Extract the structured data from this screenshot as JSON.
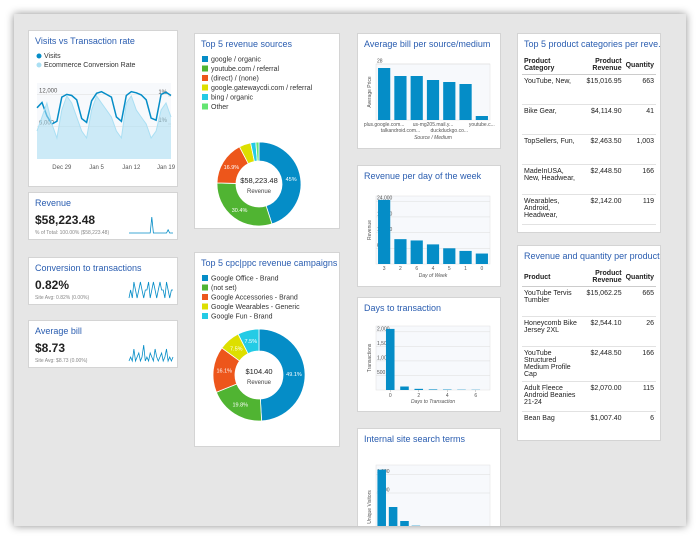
{
  "chart_data": [
    {
      "type": "line",
      "title": "Visits vs Transaction rate",
      "categories": [
        null,
        null,
        null,
        null,
        null,
        "Dec 29",
        null,
        null,
        null,
        null,
        null,
        null,
        "Jan 5",
        null,
        null,
        null,
        null,
        null,
        null,
        "Jan 12",
        null,
        null,
        null,
        null,
        null,
        null,
        "Jan 19",
        null
      ],
      "series": [
        {
          "name": "Visits",
          "color": "#058dc7",
          "values": [
            9500,
            10500,
            8000,
            6500,
            7000,
            11500,
            12000,
            11800,
            11000,
            7500,
            6800,
            10800,
            12200,
            12500,
            12000,
            11500,
            7800,
            7000,
            11800,
            12500,
            12300,
            11900,
            11000,
            7600,
            7200,
            12000,
            12400,
            11800
          ]
        },
        {
          "name": "Ecommerce Conversion Rate",
          "color": "#aadff3",
          "axis": "y2",
          "values": [
            0.9,
            1.1,
            1.3,
            1.0,
            0.8,
            1.2,
            1.4,
            1.3,
            1.1,
            0.9,
            0.8,
            1.2,
            1.4,
            1.3,
            1.2,
            1.1,
            0.9,
            0.8,
            1.3,
            1.4,
            1.2,
            1.1,
            1.0,
            0.8,
            0.9,
            1.2,
            1.3,
            1.1
          ]
        }
      ],
      "ylim": [
        0,
        13000
      ],
      "yticks": [
        {
          "value": 6000,
          "label": "6,000"
        },
        {
          "value": 12000,
          "label": "12,000"
        }
      ],
      "y2lim": [
        0.5,
        1.5
      ],
      "y2ticks": [
        {
          "value": 1.0,
          "label": "1%"
        },
        {
          "value": 1.4,
          "label": "1%"
        }
      ],
      "grid": true
    },
    {
      "type": "pie",
      "title": "Top 5 revenue sources",
      "categories": [
        "google / organic",
        "youtube.com / referral",
        "(direct) / (none)",
        "google.gatewaycdi.com / referral",
        "bing / organic",
        "Other"
      ],
      "values": [
        45,
        30.4,
        16.9,
        4.5,
        2,
        1.2
      ],
      "value_labels": [
        "45%",
        "30.4%",
        "16.9%",
        null,
        null,
        null
      ],
      "colors": [
        "#058dc7",
        "#50b432",
        "#ed561b",
        "#dddf00",
        "#24cbe5",
        "#64e572"
      ],
      "center_value": "$58,223.48",
      "center_label": "Revenue"
    },
    {
      "type": "pie",
      "title": "Top 5 cpc|ppc revenue campaigns",
      "categories": [
        "Google Office - Brand",
        "(not set)",
        "Google Accessories - Brand",
        "Google Wearables - Generic",
        "Google Fun - Brand"
      ],
      "values": [
        49.1,
        19.8,
        16.1,
        7.5,
        7.5
      ],
      "value_labels": [
        "49.1%",
        "19.8%",
        "16.1%",
        "7.5%",
        "7.5%"
      ],
      "colors": [
        "#058dc7",
        "#50b432",
        "#ed561b",
        "#dddf00",
        "#24cbe5"
      ],
      "center_value": "$104.40",
      "center_label": "Revenue"
    },
    {
      "type": "bar",
      "title": "Average bill per source/medium",
      "categories": [
        "plus.google.com...",
        "talkandroid.com...",
        null,
        "us-mg205.mail.y...",
        "duckduckgo.co...",
        null,
        "youtube.c..."
      ],
      "values": [
        26,
        22,
        22,
        20,
        19,
        18,
        2
      ],
      "color": "#058dc7",
      "ylim": [
        0,
        28
      ],
      "yticks": [
        28
      ],
      "y_label": "Average Price",
      "x_label": "Source / Medium"
    },
    {
      "type": "bar",
      "title": "Revenue per day of the week",
      "categories": [
        "3",
        "2",
        "6",
        "4",
        "5",
        "1",
        "0"
      ],
      "values": [
        24500,
        9500,
        9000,
        7500,
        6000,
        5000,
        4000
      ],
      "color": "#058dc7",
      "ylim": [
        0,
        26000
      ],
      "yticks": [
        {
          "value": 6000,
          "label": "6,000"
        },
        {
          "value": 12000,
          "label": "12,000"
        },
        {
          "value": 18000,
          "label": "18,000"
        },
        {
          "value": 24000,
          "label": "24,000"
        }
      ],
      "y_label": "Revenue",
      "x_label": "Day of Week"
    },
    {
      "type": "bar",
      "title": "Days to transaction",
      "x": [
        0,
        1,
        2,
        3,
        4,
        5,
        6
      ],
      "values": [
        2100,
        120,
        40,
        20,
        15,
        10,
        8
      ],
      "color": "#058dc7",
      "xlim": [
        -1,
        7
      ],
      "xticks": [
        0,
        2,
        4,
        6
      ],
      "ylim": [
        0,
        2200
      ],
      "yticks": [
        500,
        {
          "value": 1000,
          "label": "1,000"
        },
        {
          "value": 1500,
          "label": "1,500"
        },
        {
          "value": 2000,
          "label": "2,000"
        }
      ],
      "y_label": "Transactions",
      "x_label": "Days to Transaction"
    },
    {
      "type": "bar",
      "title": "Internal site search terms",
      "values": [
        1700,
        900,
        600,
        500,
        420,
        350,
        300,
        250,
        200,
        150
      ],
      "color": "#058dc7",
      "ylim": [
        0,
        1800
      ],
      "yticks": [
        {
          "value": 1200,
          "label": "1,200"
        },
        {
          "value": 1600,
          "label": "1,600"
        }
      ],
      "y_label": "Unique Visitors"
    }
  ],
  "scorecards": [
    {
      "title": "Revenue",
      "value": "$58,223.48",
      "subtitle": "% of Total: 100.00% ($58,223.48)",
      "sparkline": [
        1,
        1,
        1,
        1,
        1,
        1,
        1,
        1,
        1,
        1,
        1,
        1,
        1,
        1,
        6,
        1,
        1,
        1,
        1,
        1,
        1,
        1,
        1,
        1,
        2,
        1,
        1,
        1
      ]
    },
    {
      "title": "Conversion to transactions",
      "value": "0.82%",
      "subtitle": "Site Avg: 0.82% (0.00%)",
      "sparkline": [
        3,
        4,
        3,
        5,
        4,
        3,
        4,
        5,
        4,
        3,
        4,
        4,
        5,
        3,
        4,
        5,
        4,
        3,
        4,
        5,
        4,
        4,
        3,
        5,
        4,
        3,
        4,
        4
      ]
    },
    {
      "title": "Average bill",
      "value": "$8.73",
      "subtitle": "Site Avg: $8.73 (0.00%)",
      "sparkline": [
        3,
        4,
        3,
        6,
        3,
        4,
        5,
        3,
        4,
        7,
        3,
        4,
        3,
        5,
        4,
        3,
        6,
        4,
        3,
        4,
        5,
        3,
        4,
        6,
        3,
        4,
        3,
        4
      ]
    }
  ],
  "tables": [
    {
      "title": "Top 5 product categories per reve...",
      "headers": [
        "Product Category",
        "Product Revenue",
        "Quantity"
      ],
      "rows": [
        [
          "YouTube, New,",
          "$15,016.95",
          "663"
        ],
        [
          "Bike Gear,",
          "$4,114.90",
          "41"
        ],
        [
          "TopSellers, Fun,",
          "$2,463.50",
          "1,003"
        ],
        [
          "MadeInUSA, New, Headwear,",
          "$2,448.50",
          "166"
        ],
        [
          "Wearables, Android, Headwear,",
          "$2,142.00",
          "119"
        ]
      ]
    },
    {
      "title": "Revenue and quantity per product",
      "headers": [
        "Product",
        "Product Revenue",
        "Quantity"
      ],
      "rows": [
        [
          "YouTube Tervis Tumbler",
          "$15,062.25",
          "665"
        ],
        [
          "Honeycomb Bike Jersey 2XL",
          "$2,544.10",
          "26"
        ],
        [
          "YouTube Structured Medium Profile Cap",
          "$2,448.50",
          "166"
        ],
        [
          "Adult Fleece Android Beanies 21-24",
          "$2,070.00",
          "115"
        ],
        [
          "Bean Bag",
          "$1,007.40",
          "6"
        ]
      ]
    }
  ]
}
